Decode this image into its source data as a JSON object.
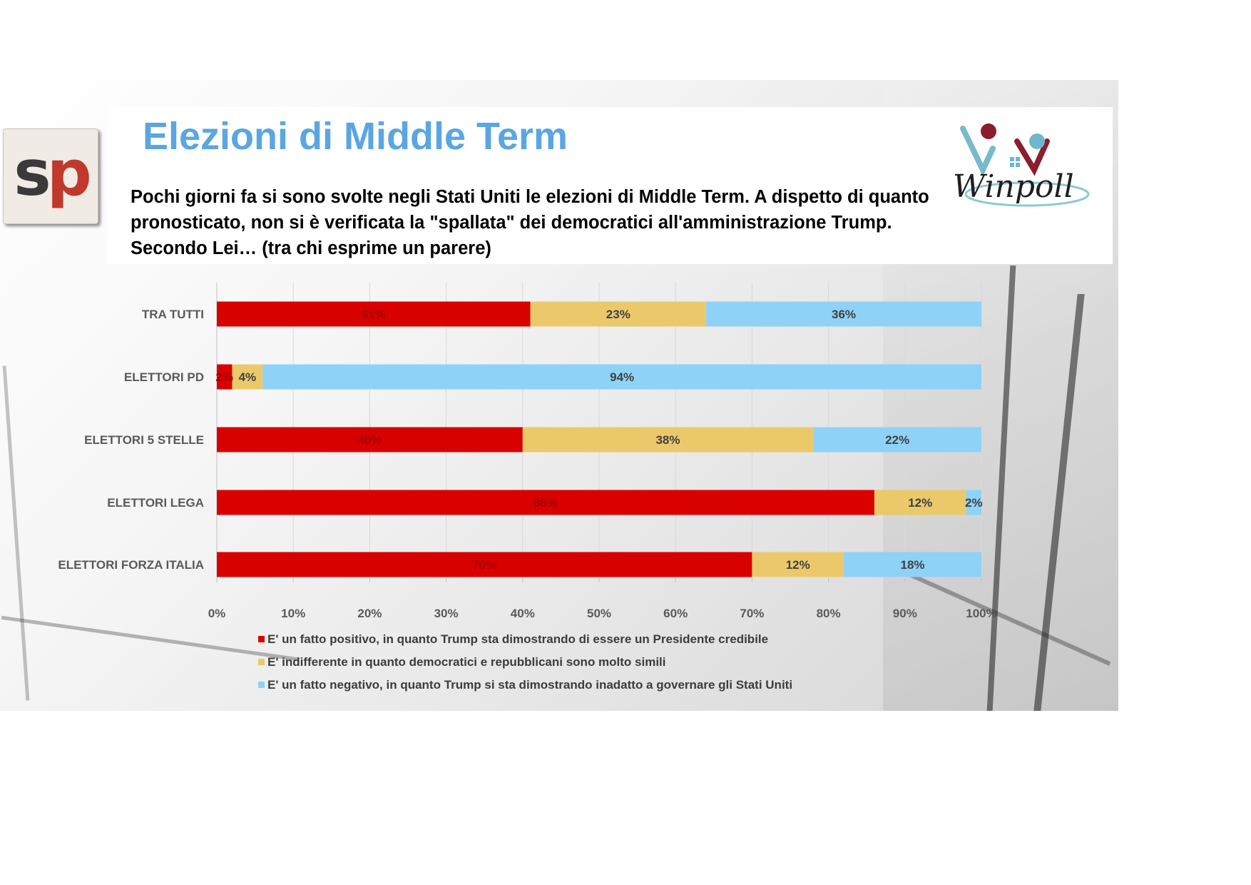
{
  "page": {
    "title": "Elezioni di Middle Term",
    "question": "Pochi giorni fa si sono svolte negli Stati Uniti le elezioni di Middle Term. A dispetto di quanto pronosticato, non si è verificata la \"spallata\" dei democratici all'amministrazione Trump. Secondo Lei… (tra chi esprime un parere)",
    "logo_left_text_s": "s",
    "logo_left_text_p": "p",
    "logo_right_text": "Winpoll",
    "colors": {
      "title": "#5aa6e2",
      "positive": "#d90000",
      "indifferent": "#ebc96b",
      "negative": "#8fd2f7"
    }
  },
  "chart_data": {
    "type": "bar",
    "orientation": "horizontal",
    "stacked": true,
    "title": "",
    "xlabel": "",
    "ylabel": "",
    "xlim": [
      0,
      100
    ],
    "x_ticks": [
      "0%",
      "10%",
      "20%",
      "30%",
      "40%",
      "50%",
      "60%",
      "70%",
      "80%",
      "90%",
      "100%"
    ],
    "grid": true,
    "legend_position": "bottom",
    "categories": [
      "TRA TUTTI",
      "ELETTORI PD",
      "ELETTORI 5 STELLE",
      "ELETTORI LEGA",
      "ELETTORI FORZA ITALIA"
    ],
    "series": [
      {
        "name": "E' un fatto positivo, in quanto Trump sta dimostrando di essere un Presidente credibile",
        "color": "#d90000",
        "values": [
          41,
          2,
          40,
          86,
          70
        ],
        "labels": [
          "41%",
          "2%",
          "40%",
          "86%",
          "70%"
        ]
      },
      {
        "name": "E' indifferente in quanto democratici e repubblicani sono molto simili",
        "color": "#ebc96b",
        "values": [
          23,
          4,
          38,
          12,
          12
        ],
        "labels": [
          "23%",
          "4%",
          "38%",
          "12%",
          "12%"
        ]
      },
      {
        "name": "E' un fatto negativo, in quanto Trump si sta dimostrando inadatto a governare gli Stati Uniti",
        "color": "#8fd2f7",
        "values": [
          36,
          94,
          22,
          2,
          18
        ],
        "labels": [
          "36%",
          "94%",
          "22%",
          "2%",
          "18%"
        ]
      }
    ]
  }
}
